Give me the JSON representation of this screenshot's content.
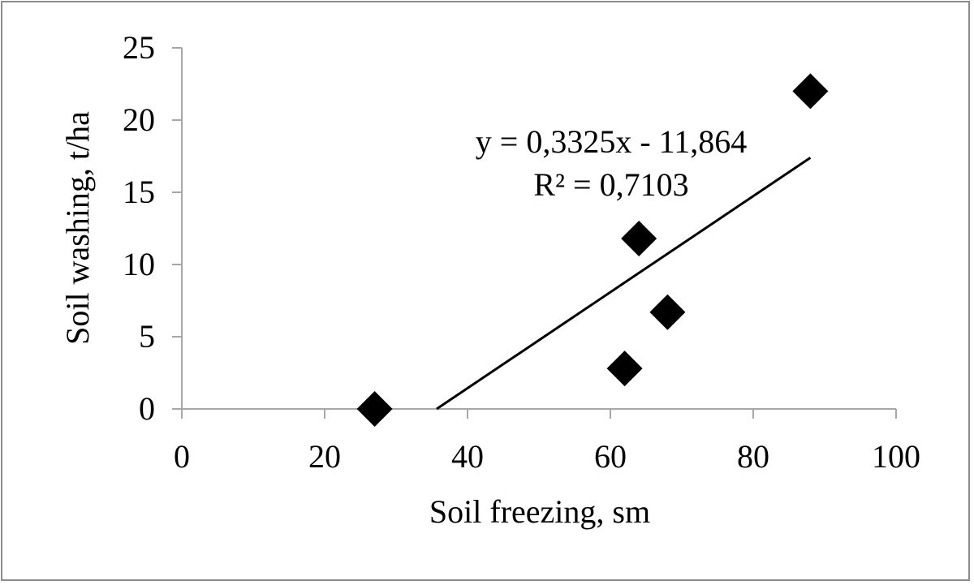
{
  "chart_data": {
    "type": "scatter",
    "xlabel": "Soil freezing, sm",
    "ylabel": "Soil washing, t/ha",
    "xlim": [
      0,
      100
    ],
    "ylim": [
      0,
      25
    ],
    "x_ticks": [
      "0",
      "20",
      "40",
      "60",
      "80",
      "100"
    ],
    "y_ticks": [
      "0",
      "5",
      "10",
      "15",
      "20",
      "25"
    ],
    "grid": false,
    "points": [
      {
        "x": 27,
        "y": 0
      },
      {
        "x": 62,
        "y": 2.8
      },
      {
        "x": 64,
        "y": 11.8
      },
      {
        "x": 68,
        "y": 6.7
      },
      {
        "x": 88,
        "y": 22
      }
    ],
    "trendline": {
      "type": "linear",
      "slope": 0.3325,
      "intercept": -11.864,
      "x_end": 88,
      "equation": "y = 0,3325x - 11,864",
      "r_squared": "R² = 0,7103"
    },
    "colors": {
      "marker": "#000000",
      "line": "#000000",
      "axis": "#a6a6a6",
      "border": "#8c8c8c"
    }
  }
}
